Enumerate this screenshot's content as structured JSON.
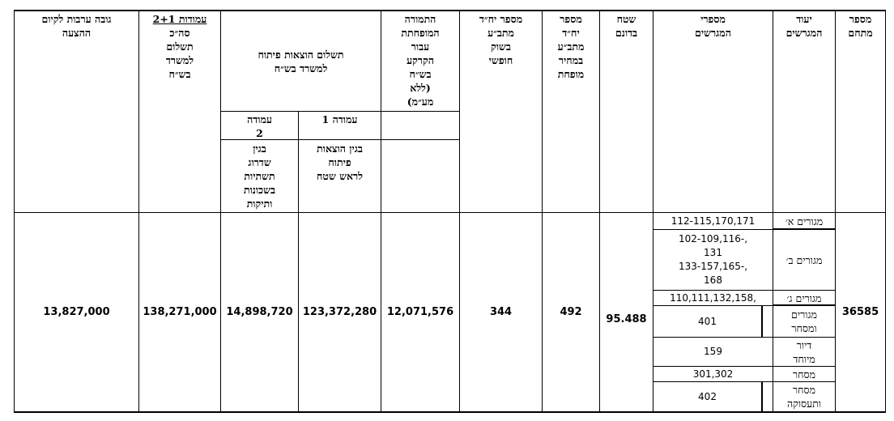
{
  "headers": {
    "area_number": [
      "מספר",
      "מתחם"
    ],
    "lot_use": [
      "יעוד",
      "המגרשים"
    ],
    "lot_numbers": [
      "מספרי",
      "המגרשים"
    ],
    "area_dunams": [
      "שטח",
      "בדונם"
    ],
    "units_reduced": [
      "מספר",
      "יח״ד",
      "מתב״ע",
      "במחיר",
      "מופחת"
    ],
    "units_free": [
      "מספר יח״ד",
      "מתב״ע",
      "בשוק",
      "חופשי"
    ],
    "reduced_land_value": [
      "התמורה",
      "המופחתת",
      "עבור",
      "הקרקע",
      "בש״ח",
      "(ללא",
      "מע״מ)"
    ],
    "dev_payment": [
      "תשלום הוצאות פיתוח",
      "למשרד בש״ח"
    ],
    "col1_label": "עמודה 1",
    "col1_desc": [
      "בגין הוצאות",
      "פיתוח",
      "לראש שטח"
    ],
    "col2_label": [
      "עמודה",
      "2"
    ],
    "col2_desc": [
      "בגין",
      "שדרוג",
      "תשתיות",
      "בשכונות",
      "ותיקות"
    ],
    "total_payment_title": "עמודות 2+1",
    "total_payment": [
      "סה״כ",
      "תשלום",
      "למשרד",
      "בש״ח"
    ],
    "guarantee": [
      "גובה ערבות לקיום",
      "ההצעה"
    ]
  },
  "row": {
    "area_number": "36585",
    "area_dunams": "95.488",
    "units_reduced": "492",
    "units_free": "344",
    "reduced_land_value": "12,071,576",
    "col1_value": "123,372,280",
    "col2_value": "14,898,720",
    "total_payment": "138,271,000",
    "guarantee": "13,827,000"
  },
  "lots": [
    {
      "use": [
        "מגורים א׳"
      ],
      "numbers": [
        "112-115,170,171"
      ]
    },
    {
      "use": [
        "מגורים ב׳"
      ],
      "numbers": [
        "102-109,116-,",
        "131",
        "133-157,165-,",
        "168"
      ]
    },
    {
      "use": [
        "מגורים ג׳"
      ],
      "numbers": [
        "110,111,132,158,"
      ]
    },
    {
      "use": [
        "מגורים",
        "ומסחר"
      ],
      "numbers": [
        "401"
      ]
    },
    {
      "use": [
        "דיור",
        "מיוחד"
      ],
      "numbers": [
        "159"
      ]
    },
    {
      "use": [
        "מסחר"
      ],
      "numbers": [
        "301,302"
      ]
    },
    {
      "use": [
        "מסחר",
        "ותעסוקה"
      ],
      "numbers": [
        "402"
      ]
    }
  ]
}
